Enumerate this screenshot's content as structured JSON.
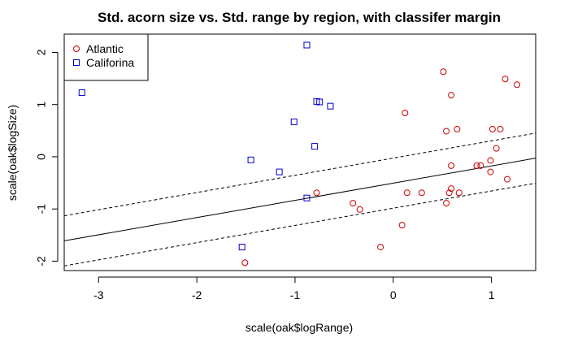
{
  "chart_data": {
    "type": "scatter",
    "title": "Std. acorn size vs. Std. range by region, with classifer margin",
    "xlabel": "scale(oak$logRange)",
    "ylabel": "scale(oak$logSize)",
    "xlim": [
      -3.35,
      1.45
    ],
    "ylim": [
      -2.18,
      2.35
    ],
    "x_ticks": [
      -3,
      -2,
      -1,
      0,
      1
    ],
    "y_ticks": [
      -2,
      -1,
      0,
      1,
      2
    ],
    "legend_position": "top-left",
    "series": [
      {
        "name": "Atlantic",
        "marker": "circle",
        "color": "#cc0000",
        "points": [
          [
            0.51,
            1.63
          ],
          [
            1.14,
            1.49
          ],
          [
            1.26,
            1.38
          ],
          [
            0.59,
            1.18
          ],
          [
            0.12,
            0.84
          ],
          [
            0.65,
            0.53
          ],
          [
            0.54,
            0.49
          ],
          [
            1.01,
            0.53
          ],
          [
            1.09,
            0.53
          ],
          [
            1.05,
            0.16
          ],
          [
            0.99,
            -0.07
          ],
          [
            0.59,
            -0.17
          ],
          [
            0.85,
            -0.17
          ],
          [
            0.89,
            -0.17
          ],
          [
            0.99,
            -0.29
          ],
          [
            1.16,
            -0.43
          ],
          [
            0.59,
            -0.61
          ],
          [
            0.14,
            -0.69
          ],
          [
            0.29,
            -0.69
          ],
          [
            0.57,
            -0.69
          ],
          [
            0.67,
            -0.69
          ],
          [
            -0.78,
            -0.69
          ],
          [
            0.54,
            -0.89
          ],
          [
            -0.41,
            -0.89
          ],
          [
            -0.34,
            -1.01
          ],
          [
            0.09,
            -1.31
          ],
          [
            -0.13,
            -1.73
          ],
          [
            -1.51,
            -2.03
          ]
        ]
      },
      {
        "name": "Califorina",
        "marker": "square",
        "color": "#0000cc",
        "points": [
          [
            -0.88,
            2.14
          ],
          [
            -3.17,
            1.23
          ],
          [
            -0.78,
            1.06
          ],
          [
            -0.75,
            1.05
          ],
          [
            -0.64,
            0.97
          ],
          [
            -1.01,
            0.67
          ],
          [
            -0.8,
            0.2
          ],
          [
            -1.45,
            -0.06
          ],
          [
            -1.16,
            -0.29
          ],
          [
            -0.88,
            -0.79
          ],
          [
            -1.54,
            -1.73
          ]
        ]
      }
    ],
    "lines": [
      {
        "name": "classifier boundary",
        "style": "solid",
        "intercept": -0.505,
        "slope": 0.33
      },
      {
        "name": "upper margin",
        "style": "dashed",
        "intercept": -0.025,
        "slope": 0.33
      },
      {
        "name": "lower margin",
        "style": "dashed",
        "intercept": -0.985,
        "slope": 0.33
      }
    ]
  }
}
